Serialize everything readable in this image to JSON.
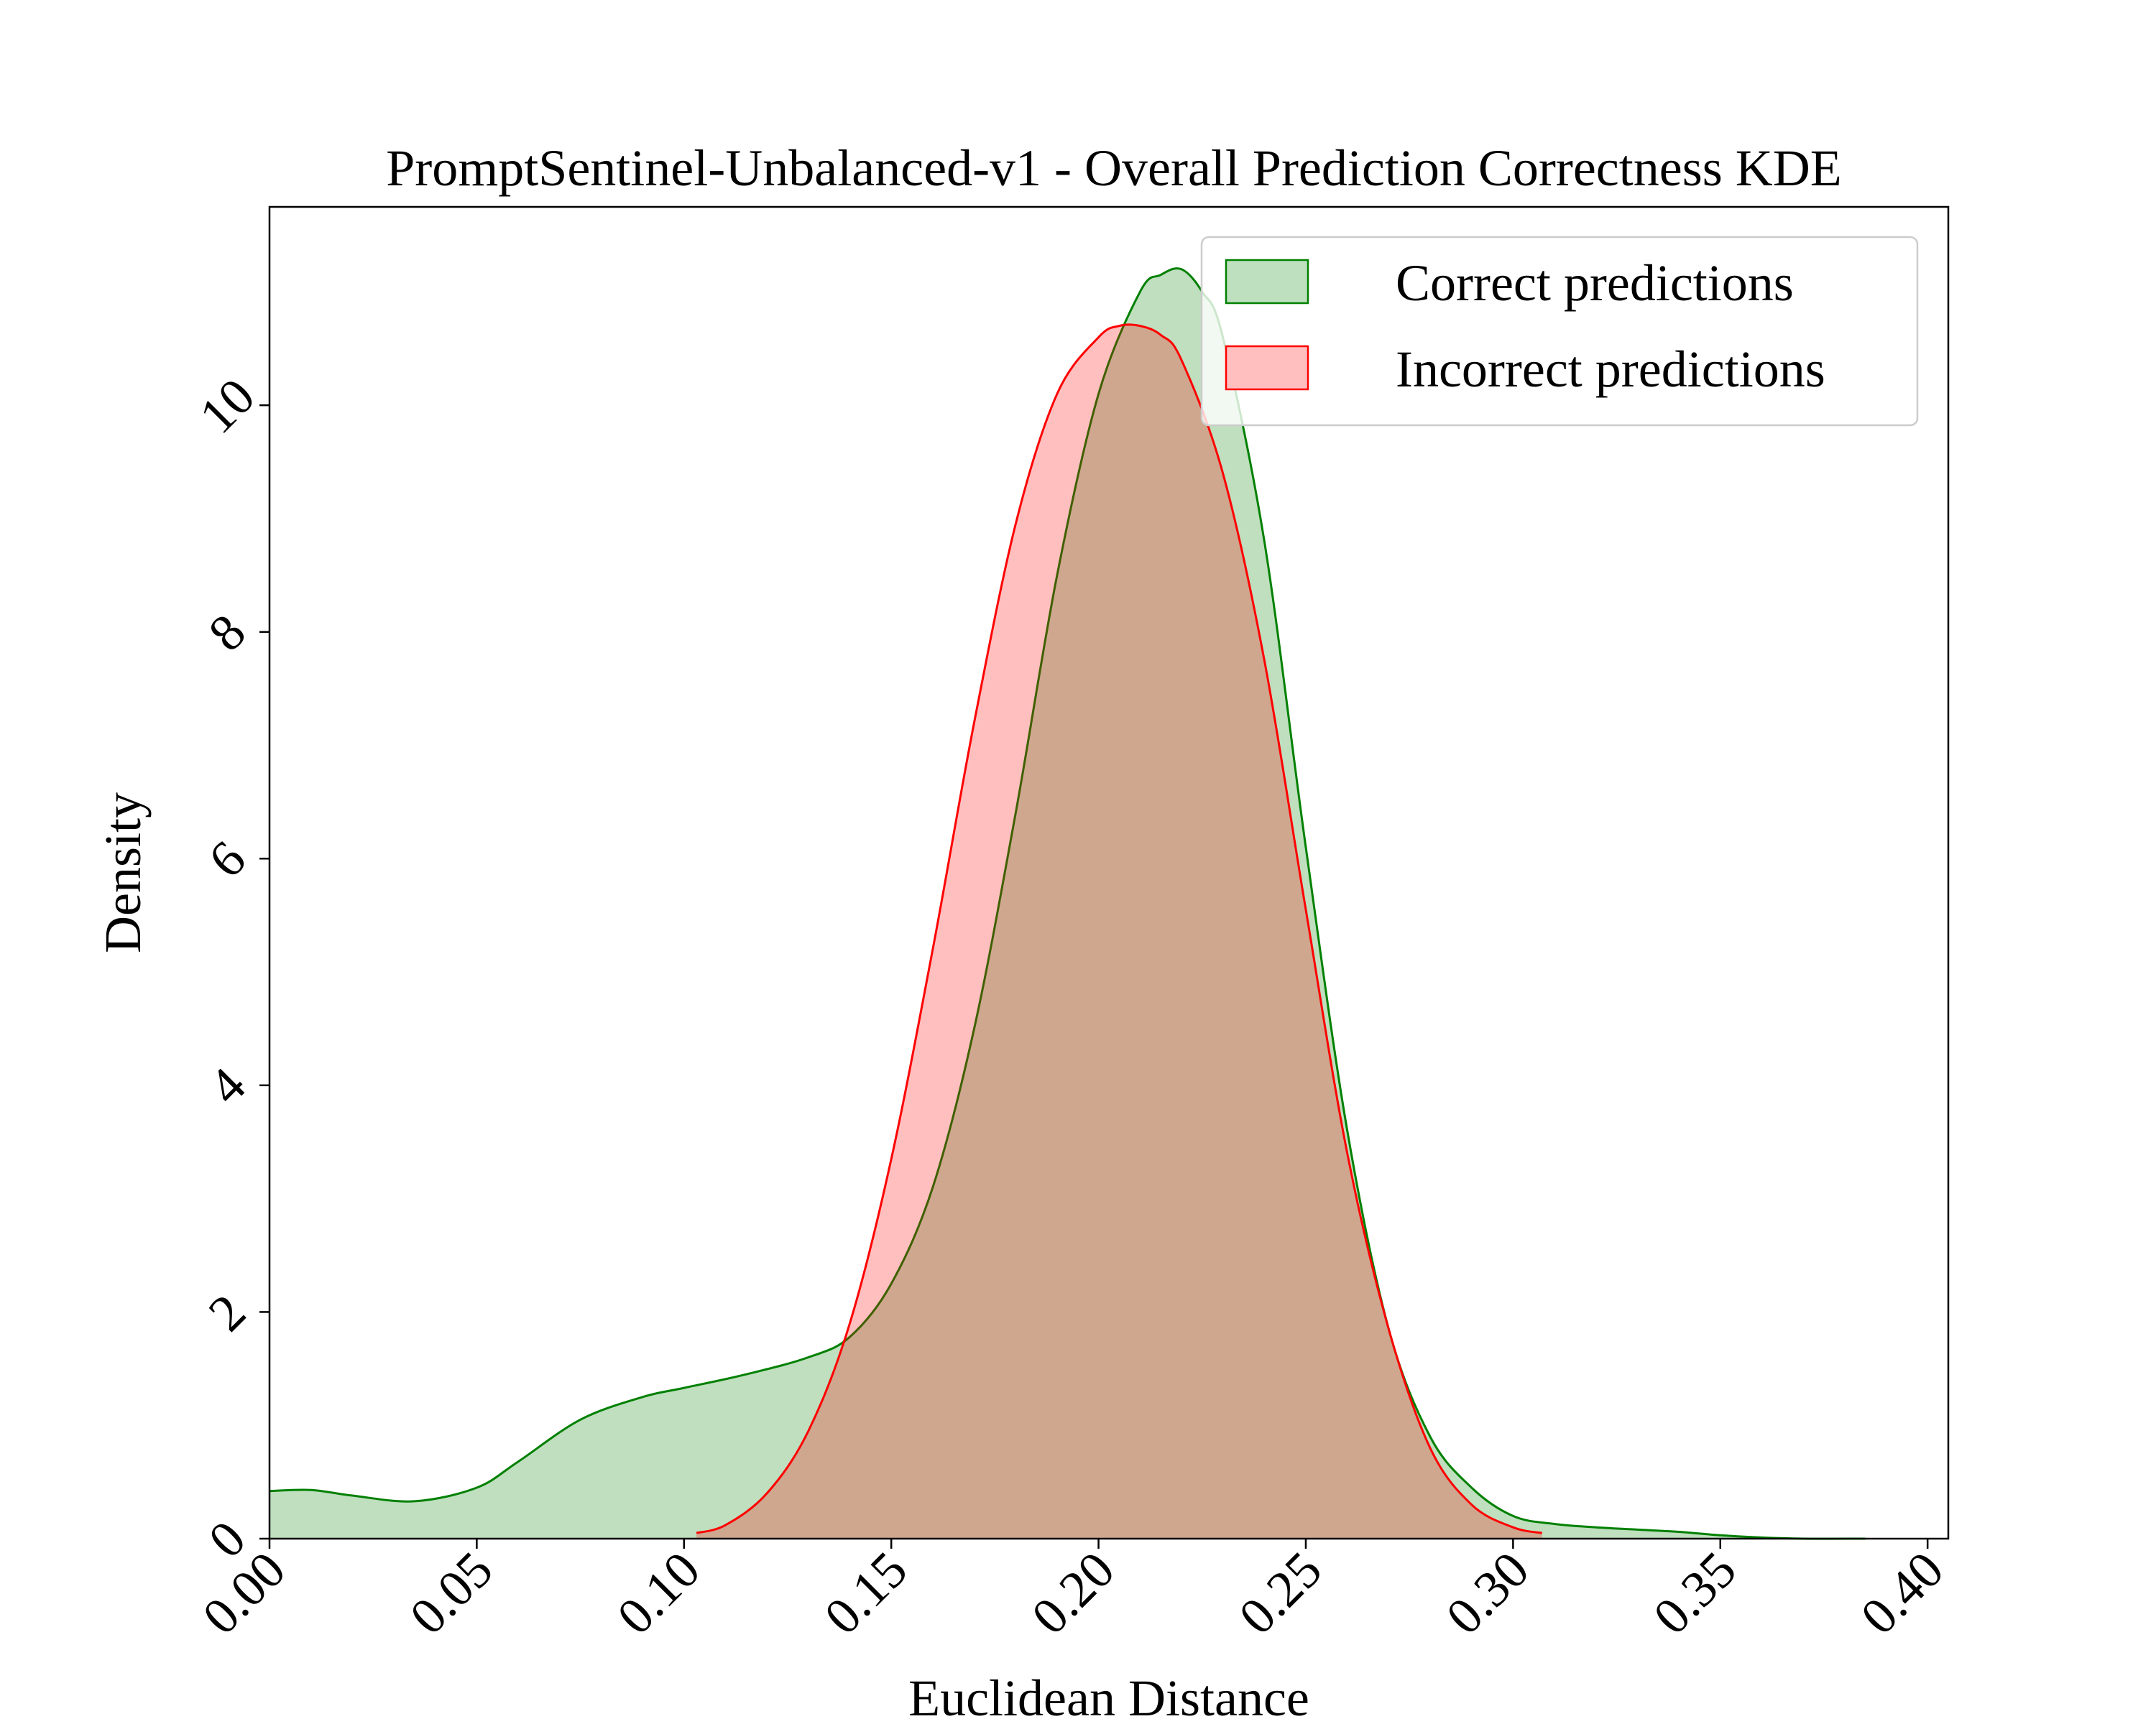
{
  "chart_data": {
    "type": "area",
    "title": "PromptSentinel-Unbalanced-v1 - Overall Prediction Correctness KDE",
    "xlabel": "Euclidean Distance",
    "ylabel": "Density",
    "xlim": [
      0.0,
      0.405
    ],
    "ylim": [
      0,
      11.75
    ],
    "xticks": [
      0.0,
      0.05,
      0.1,
      0.15,
      0.2,
      0.25,
      0.3,
      0.35,
      0.4
    ],
    "xtick_labels": [
      "0.00",
      "0.05",
      "0.10",
      "0.15",
      "0.20",
      "0.25",
      "0.30",
      "0.35",
      "0.40"
    ],
    "yticks": [
      0,
      2,
      4,
      6,
      8,
      10
    ],
    "ytick_labels": [
      "0",
      "2",
      "4",
      "6",
      "8",
      "10"
    ],
    "grid": false,
    "legend_position": "top-right",
    "series": [
      {
        "name": "Correct predictions",
        "stroke": "#008000",
        "fill": "#bfe0bf",
        "x": [
          0.0,
          0.01,
          0.02,
          0.035,
          0.05,
          0.06,
          0.075,
          0.09,
          0.1,
          0.115,
          0.13,
          0.14,
          0.15,
          0.16,
          0.17,
          0.18,
          0.19,
          0.2,
          0.21,
          0.215,
          0.22,
          0.225,
          0.23,
          0.24,
          0.25,
          0.26,
          0.27,
          0.28,
          0.29,
          0.3,
          0.31,
          0.32,
          0.33,
          0.34,
          0.35,
          0.36,
          0.37,
          0.385
        ],
        "y": [
          0.42,
          0.43,
          0.38,
          0.33,
          0.45,
          0.68,
          1.05,
          1.25,
          1.33,
          1.45,
          1.6,
          1.78,
          2.25,
          3.1,
          4.5,
          6.4,
          8.5,
          10.1,
          11.0,
          11.15,
          11.2,
          11.0,
          10.6,
          8.8,
          6.1,
          3.6,
          1.85,
          0.9,
          0.45,
          0.2,
          0.13,
          0.1,
          0.08,
          0.06,
          0.03,
          0.01,
          0.0,
          0.0
        ]
      },
      {
        "name": "Incorrect predictions",
        "stroke": "#ff0000",
        "fill": "#ffbfbf",
        "x": [
          0.103,
          0.11,
          0.12,
          0.13,
          0.14,
          0.15,
          0.16,
          0.17,
          0.18,
          0.19,
          0.2,
          0.205,
          0.21,
          0.215,
          0.22,
          0.23,
          0.24,
          0.25,
          0.26,
          0.27,
          0.28,
          0.29,
          0.3,
          0.307
        ],
        "y": [
          0.05,
          0.12,
          0.4,
          0.95,
          1.9,
          3.35,
          5.2,
          7.2,
          8.95,
          10.1,
          10.6,
          10.7,
          10.7,
          10.62,
          10.4,
          9.4,
          7.75,
          5.55,
          3.4,
          1.85,
          0.8,
          0.3,
          0.1,
          0.05
        ]
      }
    ]
  }
}
